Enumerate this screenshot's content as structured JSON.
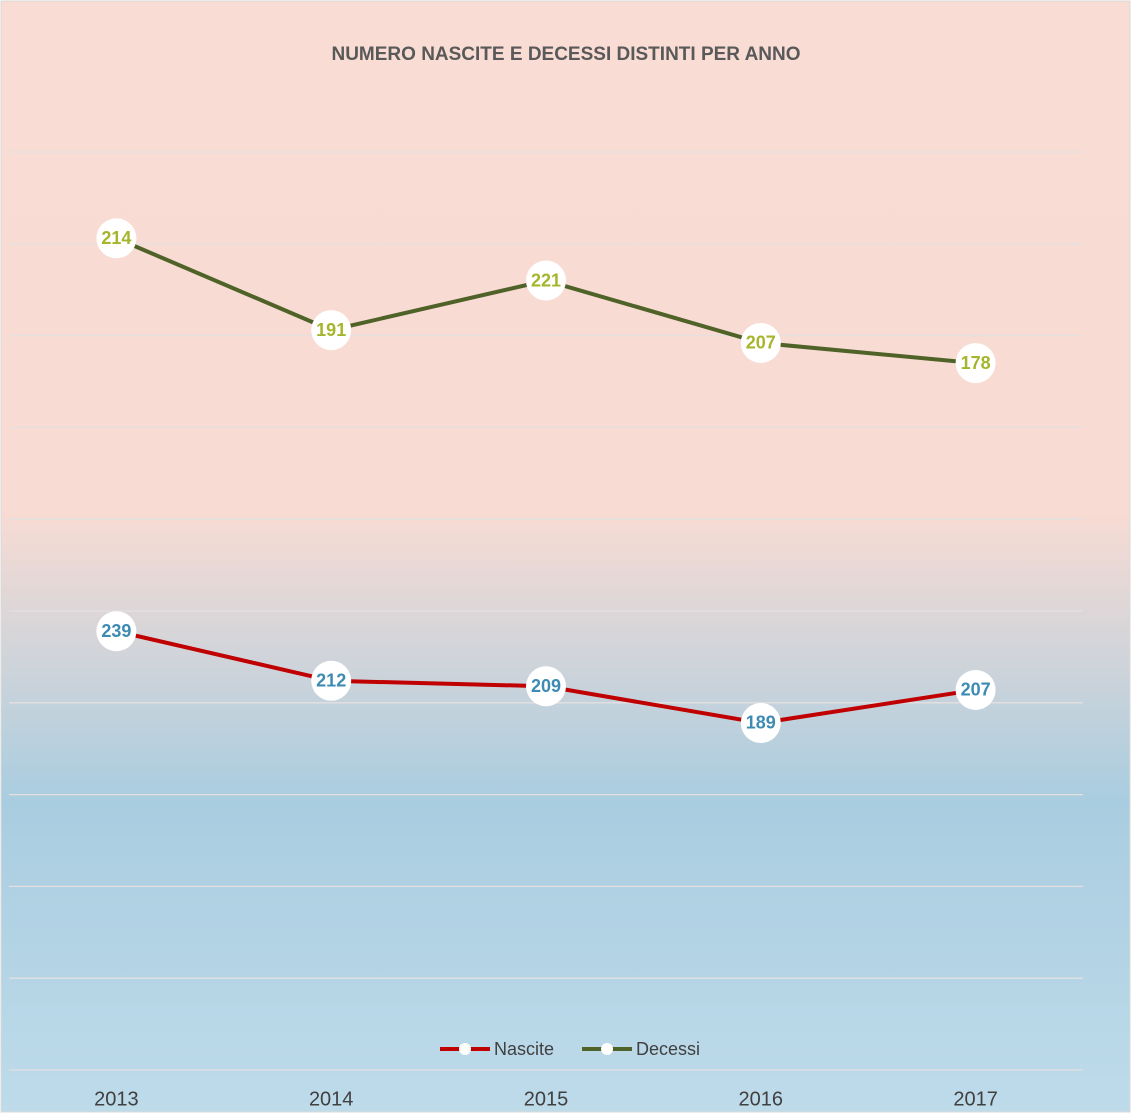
{
  "chart_data": {
    "type": "line",
    "stacked": true,
    "title": "NUMERO NASCITE E DECESSI DISTINTI PER ANNO",
    "categories": [
      "2013",
      "2014",
      "2015",
      "2016",
      "2017"
    ],
    "series": [
      {
        "name": "Nascite",
        "color": "#c00000",
        "label_color": "#3d8bb3",
        "values": [
          239,
          212,
          209,
          189,
          207
        ]
      },
      {
        "name": "Decessi",
        "color": "#4f6228",
        "label_color": "#a5b62c",
        "values": [
          214,
          191,
          221,
          207,
          178
        ]
      }
    ],
    "ylim": [
      0,
      500
    ],
    "yticks": [
      0,
      50,
      100,
      150,
      200,
      250,
      300,
      350,
      400,
      450,
      500
    ],
    "grid": true,
    "legend": "bottom"
  }
}
